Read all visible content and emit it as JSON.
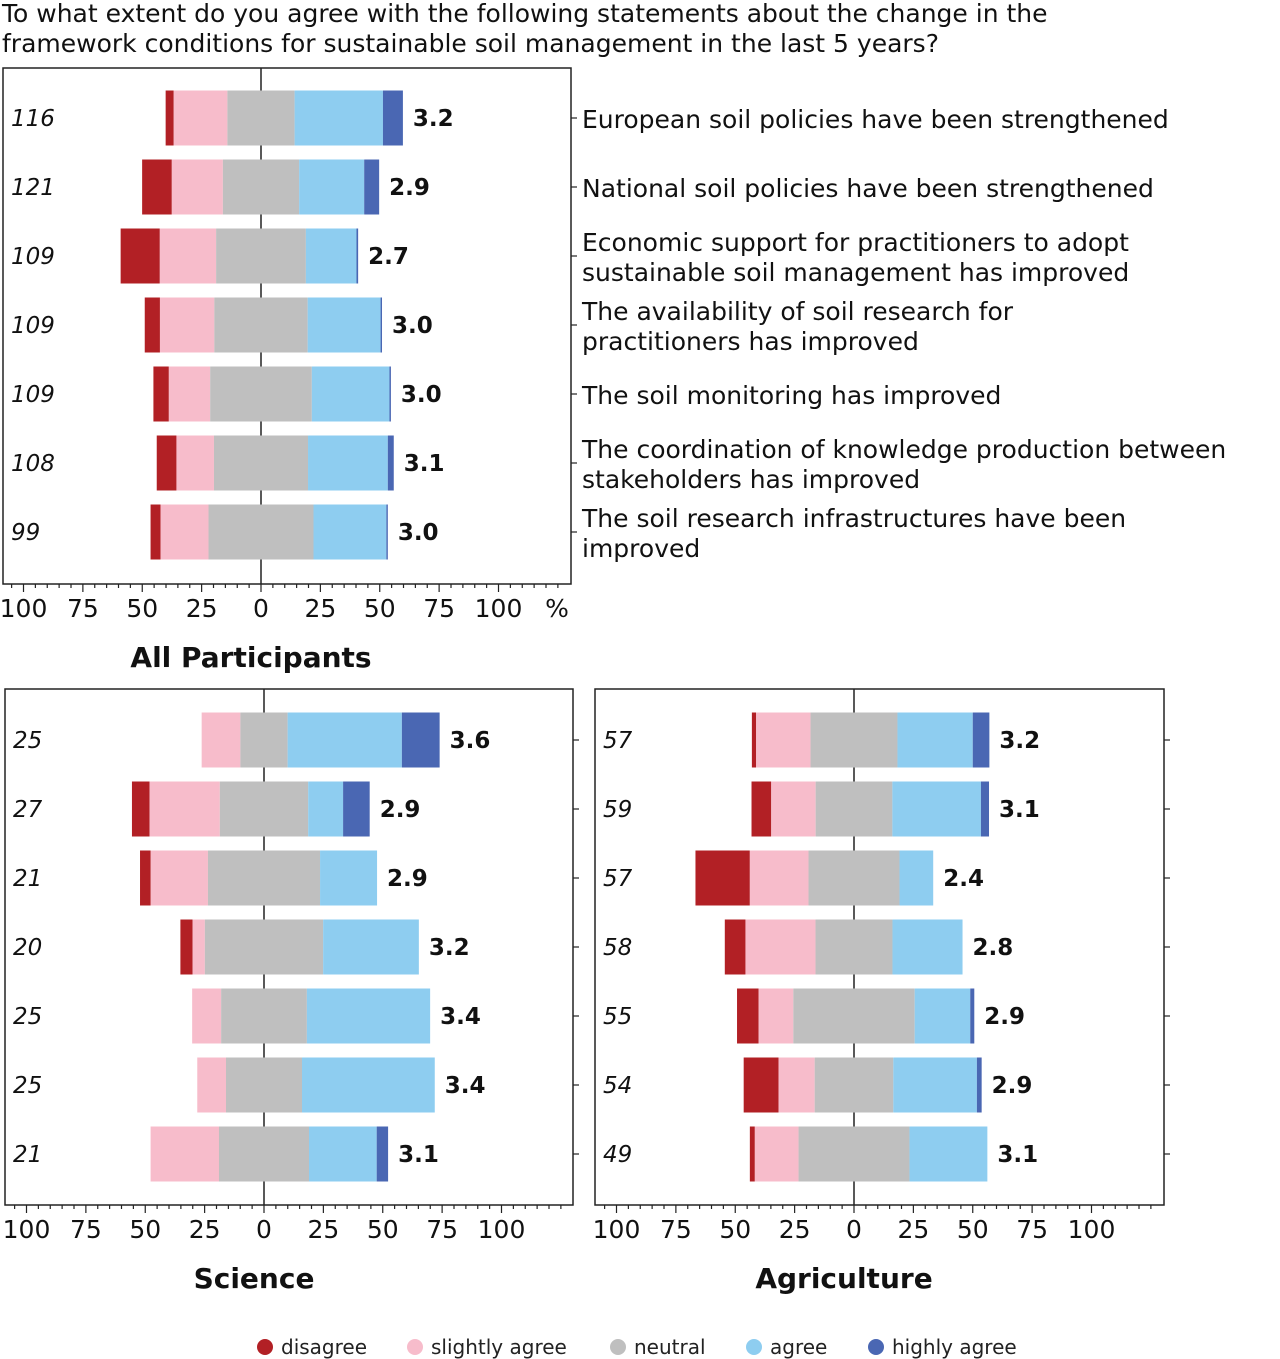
{
  "title_lines": [
    "To what extent do you agree with the following statements about the change in the",
    "framework conditions for sustainable soil management in the last 5 years?"
  ],
  "colors": {
    "disagree": "#b22025",
    "slightly_agree": "#f7bccb",
    "neutral": "#bfbfbf",
    "agree": "#8ecdf0",
    "highly_agree": "#4a67b3"
  },
  "legend": [
    {
      "key": "disagree",
      "label": "disagree"
    },
    {
      "key": "slightly_agree",
      "label": "slightly agree"
    },
    {
      "key": "neutral",
      "label": "neutral"
    },
    {
      "key": "agree",
      "label": "agree"
    },
    {
      "key": "highly_agree",
      "label": "highly agree"
    }
  ],
  "chart_data": [
    {
      "type": "bar",
      "orientation": "horizontal-diverging-stacked",
      "title": "All Participants",
      "x_unit": "%",
      "xlim": [
        -109,
        131
      ],
      "x_tick_labels": [
        "100",
        "75",
        "50",
        "25",
        "0",
        "25",
        "50",
        "75",
        "100"
      ],
      "categories": [
        [
          "European soil policies have been strengthened"
        ],
        [
          "National soil policies have been strengthened"
        ],
        [
          "Economic support for practitioners to adopt",
          "sustainable soil management has improved"
        ],
        [
          "The availability of soil research for",
          "practitioners has improved"
        ],
        [
          "The soil monitoring has improved"
        ],
        [
          "The coordination of knowledge production between",
          "stakeholders has improved"
        ],
        [
          "The soil research infrastructures have been",
          "improved"
        ]
      ],
      "n": [
        "116",
        "121",
        "109",
        "109",
        "109",
        "108",
        "99"
      ],
      "mean": [
        "3.2",
        "2.9",
        "2.7",
        "3.0",
        "3.0",
        "3.1",
        "3.0"
      ],
      "series": [
        {
          "name": "disagree",
          "values": [
            3.4,
            12.5,
            16.5,
            6.4,
            6.5,
            8.3,
            4.2
          ]
        },
        {
          "name": "slightly agree",
          "values": [
            22.6,
            21.5,
            23.7,
            22.9,
            17.4,
            15.8,
            20.2
          ]
        },
        {
          "name": "neutral",
          "values": [
            28.3,
            32.1,
            37.8,
            39.3,
            42.8,
            39.6,
            44.2
          ]
        },
        {
          "name": "agree",
          "values": [
            37.2,
            27.4,
            21.3,
            30.7,
            32.7,
            33.6,
            30.7
          ]
        },
        {
          "name": "highly agree",
          "values": [
            8.4,
            6.3,
            0.7,
            0.6,
            0.6,
            2.5,
            0.6
          ]
        }
      ]
    },
    {
      "type": "bar",
      "orientation": "horizontal-diverging-stacked",
      "title": "Science",
      "xlim": [
        -109,
        130
      ],
      "x_tick_labels": [
        "100",
        "75",
        "50",
        "25",
        "0",
        "25",
        "50",
        "75",
        "100"
      ],
      "n": [
        "25",
        "27",
        "21",
        "20",
        "25",
        "25",
        "21"
      ],
      "mean": [
        "3.6",
        "2.9",
        "2.9",
        "3.2",
        "3.4",
        "3.4",
        "3.1"
      ],
      "series": [
        {
          "name": "disagree",
          "values": [
            0,
            7.4,
            4.5,
            5.1,
            0,
            0,
            0
          ]
        },
        {
          "name": "slightly agree",
          "values": [
            16.3,
            29.6,
            24.1,
            5.2,
            12.2,
            12.1,
            28.8
          ]
        },
        {
          "name": "neutral",
          "values": [
            19.9,
            37.2,
            47.2,
            49.8,
            36.1,
            32.0,
            37.9
          ]
        },
        {
          "name": "agree",
          "values": [
            48.1,
            14.7,
            24.0,
            40.3,
            51.9,
            55.9,
            28.5
          ]
        },
        {
          "name": "highly agree",
          "values": [
            15.9,
            11.2,
            0,
            0,
            0,
            0,
            4.8
          ]
        }
      ]
    },
    {
      "type": "bar",
      "orientation": "horizontal-diverging-stacked",
      "title": "Agriculture",
      "xlim": [
        -109,
        130
      ],
      "x_tick_labels": [
        "100",
        "75",
        "50",
        "25",
        "0",
        "25",
        "50",
        "75",
        "100"
      ],
      "n": [
        "57",
        "59",
        "57",
        "58",
        "55",
        "54",
        "49"
      ],
      "mean": [
        "3.2",
        "3.1",
        "2.4",
        "2.8",
        "2.9",
        "2.9",
        "3.1"
      ],
      "series": [
        {
          "name": "disagree",
          "values": [
            1.8,
            8.3,
            22.9,
            8.7,
            9.1,
            14.7,
            2.1
          ]
        },
        {
          "name": "slightly agree",
          "values": [
            22.9,
            18.7,
            24.7,
            29.5,
            14.6,
            15.2,
            18.4
          ]
        },
        {
          "name": "neutral",
          "values": [
            36.6,
            32.3,
            38.3,
            32.4,
            51.1,
            33.1,
            46.7
          ]
        },
        {
          "name": "agree",
          "values": [
            31.7,
            37.3,
            14.2,
            29.5,
            23.4,
            35.2,
            32.8
          ]
        },
        {
          "name": "highly agree",
          "values": [
            7.0,
            3.4,
            0,
            0,
            1.7,
            2.0,
            0
          ]
        }
      ]
    }
  ]
}
